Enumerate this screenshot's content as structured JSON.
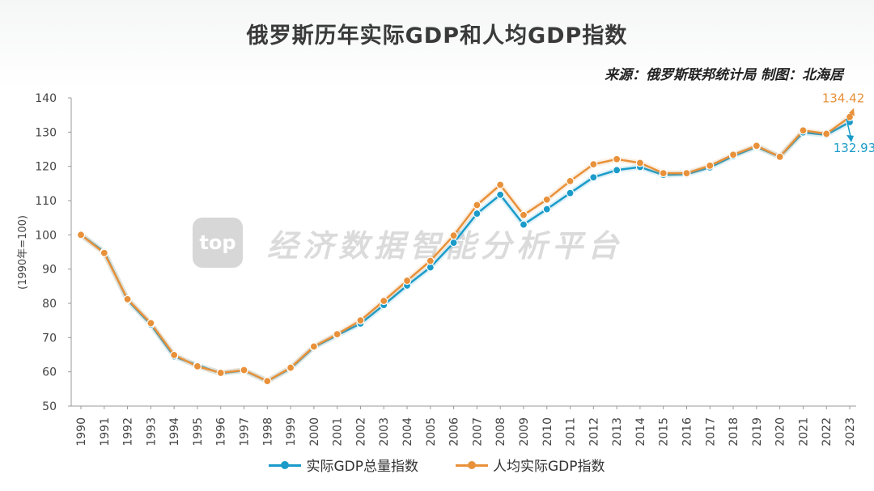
{
  "title": "俄罗斯历年实际GDP和人均GDP指数",
  "source": "来源：俄罗斯联邦统计局  制图：北海居",
  "watermark": {
    "logo": "top",
    "text": "经济数据智能分析平台"
  },
  "colors": {
    "gdp": "#1a9bc9",
    "per_capita": "#e8913a",
    "grid": "#dddddd",
    "axis": "#999999"
  },
  "chart_data": {
    "type": "line",
    "title": "俄罗斯历年实际GDP和人均GDP指数",
    "ylabel": "(1990年=100)",
    "xlabel": "",
    "ylim": [
      50,
      140
    ],
    "yticks": [
      50,
      60,
      70,
      80,
      90,
      100,
      110,
      120,
      130,
      140
    ],
    "grid": false,
    "legend_position": "bottom",
    "x": [
      "1990",
      "1991",
      "1992",
      "1993",
      "1994",
      "1995",
      "1996",
      "1997",
      "1998",
      "1999",
      "2000",
      "2001",
      "2002",
      "2003",
      "2004",
      "2005",
      "2006",
      "2007",
      "2008",
      "2009",
      "2010",
      "2011",
      "2012",
      "2013",
      "2014",
      "2015",
      "2016",
      "2017",
      "2018",
      "2019",
      "2020",
      "2021",
      "2022",
      "2023"
    ],
    "series": [
      {
        "name": "实际GDP总量指数",
        "color": "#1a9bc9",
        "values": [
          100,
          95.0,
          81.0,
          73.8,
          64.5,
          61.9,
          59.6,
          60.4,
          57.3,
          61.0,
          67.2,
          70.7,
          74.1,
          79.5,
          85.2,
          90.5,
          97.7,
          106.2,
          111.7,
          103.0,
          107.5,
          112.2,
          116.8,
          118.9,
          119.8,
          117.5,
          117.7,
          119.7,
          123.0,
          125.7,
          122.8,
          129.9,
          129.2,
          132.93
        ],
        "end_label": "132.93"
      },
      {
        "name": "人均实际GDP指数",
        "color": "#e8913a",
        "values": [
          100,
          94.7,
          81.2,
          74.2,
          64.9,
          61.6,
          59.7,
          60.5,
          57.3,
          61.2,
          67.4,
          71.0,
          75.0,
          80.7,
          86.6,
          92.4,
          99.8,
          108.7,
          114.6,
          105.8,
          110.3,
          115.7,
          120.6,
          122.1,
          121.0,
          118.0,
          118.0,
          120.2,
          123.4,
          126.0,
          122.8,
          130.5,
          129.5,
          134.42
        ],
        "end_label": "134.42"
      }
    ]
  }
}
